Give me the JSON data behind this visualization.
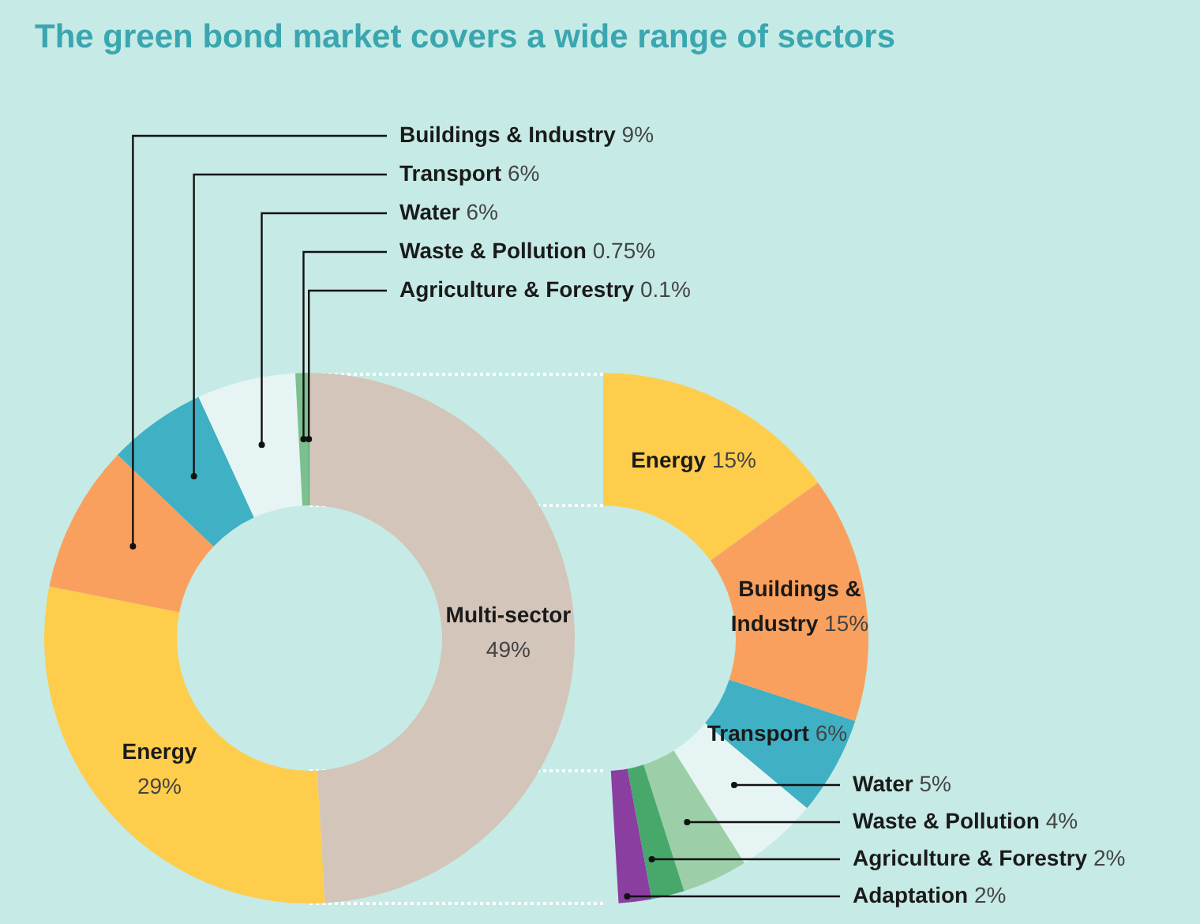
{
  "chart_data": [
    {
      "type": "donut",
      "title": "The green bond market covers a wide range of sectors",
      "categories": [
        "Multi-sector",
        "Energy",
        "Buildings & Industry",
        "Transport",
        "Water",
        "Waste & Pollution",
        "Agriculture & Forestry"
      ],
      "values": [
        49,
        29,
        9,
        6,
        6,
        0.75,
        0.1
      ],
      "value_labels": [
        "49%",
        "29%",
        "9%",
        "6%",
        "6%",
        "0.75%",
        "0.1%"
      ],
      "colors": [
        "#d3c5b9",
        "#fecd4c",
        "#f9a05e",
        "#40b0c4",
        "#e6f5f3",
        "#7cc08f",
        "#4aa36e"
      ]
    },
    {
      "type": "donut",
      "categories": [
        "Energy",
        "Buildings & Industry",
        "Transport",
        "Water",
        "Waste & Pollution",
        "Agriculture & Forestry",
        "Adaptation"
      ],
      "values": [
        15,
        15,
        6,
        5,
        4,
        2,
        2
      ],
      "value_labels": [
        "15%",
        "15%",
        "6%",
        "5%",
        "4%",
        "2%",
        "2%"
      ],
      "colors": [
        "#fecd4c",
        "#f9a05e",
        "#40b0c4",
        "#e6f5f3",
        "#9ccfa8",
        "#48a86c",
        "#8a3fa0"
      ]
    }
  ]
}
